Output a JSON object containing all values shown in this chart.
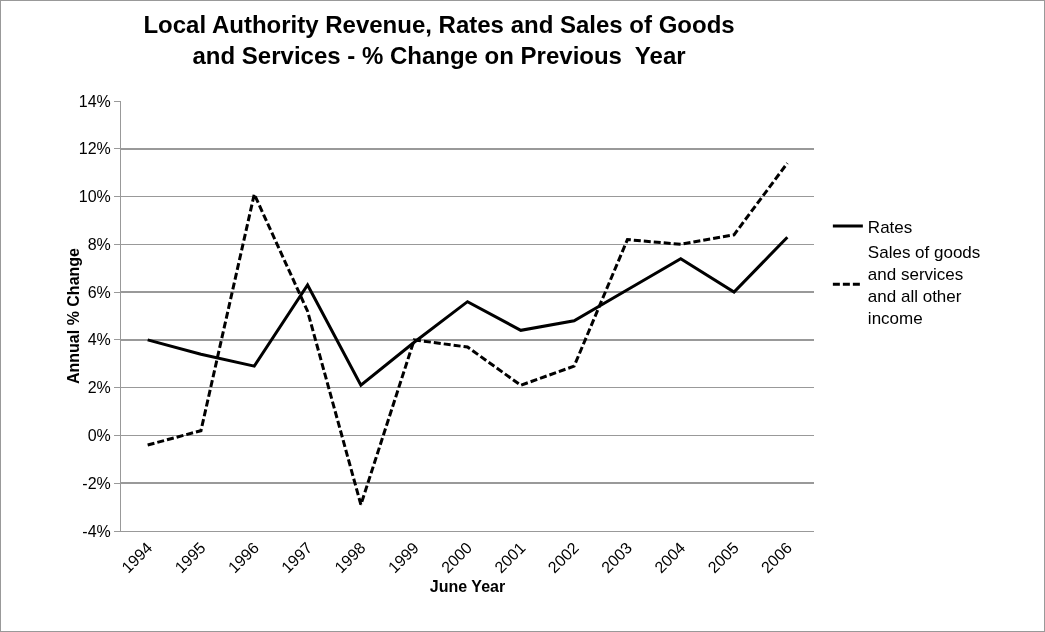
{
  "chart_data": {
    "type": "line",
    "title": "Local Authority Revenue, Rates and Sales of Goods and Services - % Change on Previous  Year",
    "xlabel": "June Year",
    "ylabel": "Annual % Change",
    "categories": [
      "1994",
      "1995",
      "1996",
      "1997",
      "1998",
      "1999",
      "2000",
      "2001",
      "2002",
      "2003",
      "2004",
      "2005",
      "2006"
    ],
    "series": [
      {
        "name": "Rates",
        "color": "#000000",
        "line_style": "solid",
        "values": [
          4.0,
          3.4,
          2.9,
          6.3,
          2.1,
          3.9,
          5.6,
          4.4,
          4.8,
          6.1,
          7.4,
          6.0,
          8.3
        ]
      },
      {
        "name": "Sales of goods and services and all other income",
        "color": "#000000",
        "line_style": "dashed",
        "values": [
          -0.4,
          0.2,
          10.1,
          5.2,
          -2.9,
          4.0,
          3.7,
          2.1,
          2.9,
          8.2,
          8.0,
          8.4,
          11.4
        ]
      }
    ],
    "ylim": [
      -4,
      14
    ],
    "yticks": [
      {
        "value": -4,
        "label": "-4%"
      },
      {
        "value": -2,
        "label": "-2%"
      },
      {
        "value": 0,
        "label": "0%"
      },
      {
        "value": 2,
        "label": "2%"
      },
      {
        "value": 4,
        "label": "4%"
      },
      {
        "value": 6,
        "label": "6%"
      },
      {
        "value": 8,
        "label": "8%"
      },
      {
        "value": 10,
        "label": "10%"
      },
      {
        "value": 12,
        "label": "12%"
      },
      {
        "value": 14,
        "label": "14%"
      }
    ],
    "grid": "y",
    "legend": "right",
    "marker": "none"
  }
}
